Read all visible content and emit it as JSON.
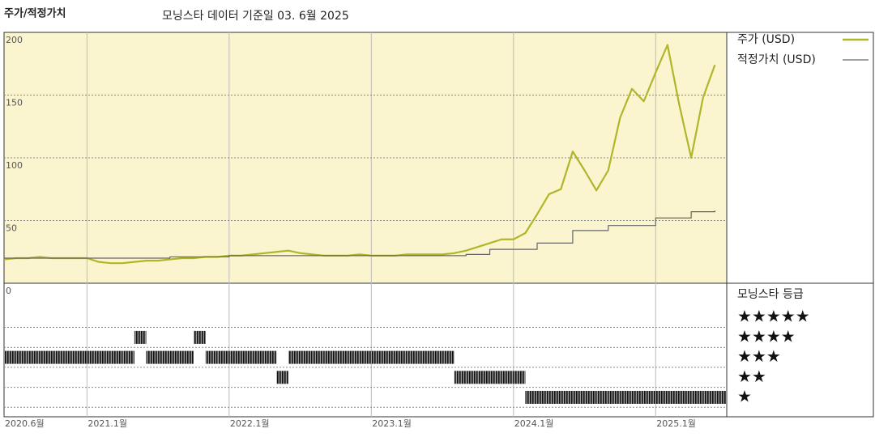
{
  "chart_data": {
    "type": "line",
    "title": "주가/적정가치",
    "subtitle": "모닝스타 데이터 기준일 03. 6월 2025",
    "x": [
      "2020-06",
      "2020-07",
      "2020-08",
      "2020-09",
      "2020-10",
      "2020-11",
      "2020-12",
      "2021-01",
      "2021-02",
      "2021-03",
      "2021-04",
      "2021-05",
      "2021-06",
      "2021-07",
      "2021-08",
      "2021-09",
      "2021-10",
      "2021-11",
      "2021-12",
      "2022-01",
      "2022-02",
      "2022-03",
      "2022-04",
      "2022-05",
      "2022-06",
      "2022-07",
      "2022-08",
      "2022-09",
      "2022-10",
      "2022-11",
      "2022-12",
      "2023-01",
      "2023-02",
      "2023-03",
      "2023-04",
      "2023-05",
      "2023-06",
      "2023-07",
      "2023-08",
      "2023-09",
      "2023-10",
      "2023-11",
      "2023-12",
      "2024-01",
      "2024-02",
      "2024-03",
      "2024-04",
      "2024-05",
      "2024-06",
      "2024-07",
      "2024-08",
      "2024-09",
      "2024-10",
      "2024-11",
      "2024-12",
      "2025-01",
      "2025-02",
      "2025-03",
      "2025-04",
      "2025-05",
      "2025-06"
    ],
    "series": [
      {
        "name": "주가 (USD)",
        "color": "#b0b52a",
        "values": [
          19,
          20,
          20,
          21,
          20,
          20,
          20,
          20,
          17,
          16,
          16,
          17,
          18,
          18,
          19,
          20,
          20,
          21,
          21,
          22,
          22,
          23,
          24,
          25,
          26,
          24,
          23,
          22,
          22,
          22,
          23,
          22,
          22,
          22,
          23,
          23,
          23,
          23,
          24,
          26,
          29,
          32,
          35,
          35,
          40,
          55,
          71,
          75,
          105,
          90,
          74,
          90,
          132,
          155,
          145,
          168,
          190,
          142,
          100,
          148,
          174
        ]
      },
      {
        "name": "적정가치 (USD)",
        "color": "#666666",
        "step": true,
        "values": [
          20,
          20,
          20,
          20,
          20,
          20,
          20,
          20,
          20,
          20,
          20,
          20,
          20,
          20,
          21,
          21,
          21,
          21,
          21,
          22,
          22,
          22,
          22,
          22,
          22,
          22,
          22,
          22,
          22,
          22,
          22,
          22,
          22,
          22,
          22,
          22,
          22,
          22,
          22,
          23,
          23,
          27,
          27,
          27,
          27,
          32,
          32,
          32,
          42,
          42,
          42,
          46,
          46,
          46,
          46,
          52,
          52,
          52,
          57,
          57,
          58
        ]
      }
    ],
    "ratings": {
      "name": "모닝스타 등급",
      "values": [
        3,
        3,
        3,
        3,
        3,
        3,
        3,
        3,
        3,
        3,
        3,
        4,
        3,
        3,
        3,
        3,
        4,
        3,
        3,
        3,
        3,
        3,
        3,
        2,
        3,
        3,
        3,
        3,
        3,
        3,
        3,
        3,
        3,
        3,
        3,
        3,
        3,
        3,
        2,
        2,
        2,
        2,
        2,
        2,
        1,
        1,
        1,
        1,
        1,
        1,
        1,
        1,
        1,
        1,
        1,
        1,
        1,
        1,
        1,
        1,
        1
      ],
      "levels": [
        {
          "value": 5,
          "label": "★★★★★"
        },
        {
          "value": 4,
          "label": "★★★★"
        },
        {
          "value": 3,
          "label": "★★★"
        },
        {
          "value": 2,
          "label": "★★"
        },
        {
          "value": 1,
          "label": "★"
        }
      ]
    },
    "xlim": [
      "2020-06",
      "2025-07"
    ],
    "xticks": [
      {
        "value": "2020-06",
        "label": "2020.6월"
      },
      {
        "value": "2021-01",
        "label": "2021.1월"
      },
      {
        "value": "2022-01",
        "label": "2022.1월"
      },
      {
        "value": "2023-01",
        "label": "2023.1월"
      },
      {
        "value": "2024-01",
        "label": "2024.1월"
      },
      {
        "value": "2025-01",
        "label": "2025.1월"
      }
    ],
    "ylim": [
      0,
      200
    ],
    "yticks": [
      0,
      50,
      100,
      150,
      200
    ],
    "grid": true,
    "background": "#fbf5cf"
  }
}
